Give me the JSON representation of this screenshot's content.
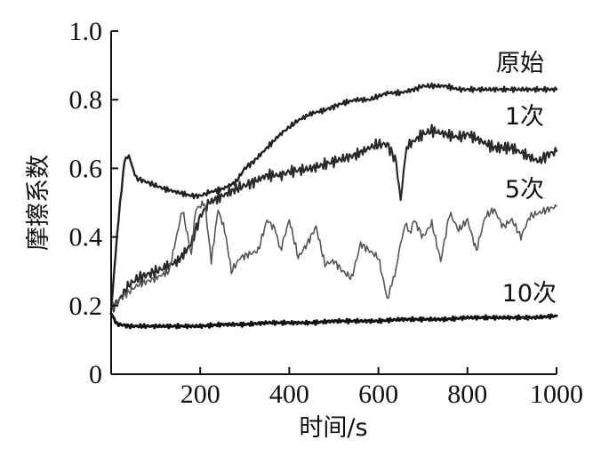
{
  "chart_data": {
    "type": "line",
    "title": "",
    "xlabel": "时间/s",
    "ylabel": "摩擦系数",
    "xlim": [
      0,
      1000
    ],
    "ylim": [
      0,
      1.0
    ],
    "x_ticks": [
      200,
      400,
      600,
      800,
      1000
    ],
    "y_ticks": [
      0,
      0.2,
      0.4,
      0.6,
      0.8,
      1.0
    ],
    "x_tick_labels": [
      "200",
      "400",
      "600",
      "800",
      "1000"
    ],
    "y_tick_labels": [
      "0",
      "0.2",
      "0.4",
      "0.6",
      "0.8",
      "1.0"
    ],
    "grid": false,
    "legend": "inline labels at right end of lines",
    "series": [
      {
        "name": "原始",
        "color": "#222222",
        "x": [
          0,
          10,
          20,
          30,
          40,
          50,
          60,
          80,
          100,
          120,
          150,
          180,
          200,
          220,
          250,
          280,
          300,
          320,
          350,
          380,
          400,
          420,
          450,
          480,
          500,
          520,
          550,
          580,
          600,
          620,
          650,
          680,
          700,
          720,
          750,
          780,
          800,
          850,
          900,
          950,
          1000
        ],
        "y": [
          0.19,
          0.35,
          0.5,
          0.62,
          0.64,
          0.59,
          0.57,
          0.56,
          0.55,
          0.54,
          0.53,
          0.52,
          0.52,
          0.53,
          0.54,
          0.56,
          0.6,
          0.62,
          0.66,
          0.7,
          0.72,
          0.74,
          0.76,
          0.77,
          0.78,
          0.79,
          0.8,
          0.8,
          0.81,
          0.82,
          0.82,
          0.83,
          0.84,
          0.84,
          0.84,
          0.83,
          0.83,
          0.83,
          0.83,
          0.83,
          0.83
        ]
      },
      {
        "name": "1次",
        "color": "#2a2a2a",
        "x": [
          0,
          20,
          40,
          60,
          80,
          100,
          120,
          150,
          180,
          200,
          220,
          250,
          280,
          300,
          320,
          350,
          380,
          400,
          450,
          500,
          550,
          580,
          600,
          620,
          640,
          650,
          660,
          670,
          700,
          720,
          750,
          780,
          800,
          830,
          860,
          900,
          930,
          960,
          980,
          1000
        ],
        "y": [
          0.19,
          0.22,
          0.26,
          0.28,
          0.29,
          0.3,
          0.31,
          0.33,
          0.38,
          0.46,
          0.5,
          0.52,
          0.54,
          0.55,
          0.56,
          0.58,
          0.58,
          0.59,
          0.6,
          0.62,
          0.64,
          0.66,
          0.67,
          0.67,
          0.62,
          0.5,
          0.64,
          0.67,
          0.7,
          0.71,
          0.7,
          0.69,
          0.7,
          0.68,
          0.66,
          0.66,
          0.64,
          0.62,
          0.64,
          0.65
        ]
      },
      {
        "name": "5次",
        "color": "#555555",
        "x": [
          0,
          20,
          40,
          60,
          80,
          100,
          130,
          160,
          180,
          190,
          210,
          225,
          240,
          255,
          270,
          290,
          310,
          330,
          350,
          370,
          380,
          400,
          420,
          440,
          460,
          480,
          500,
          520,
          540,
          560,
          580,
          600,
          620,
          630,
          640,
          650,
          660,
          670,
          680,
          700,
          720,
          740,
          760,
          780,
          800,
          820,
          840,
          860,
          880,
          900,
          920,
          940,
          960,
          980,
          1000
        ],
        "y": [
          0.19,
          0.22,
          0.24,
          0.26,
          0.27,
          0.28,
          0.3,
          0.48,
          0.35,
          0.48,
          0.5,
          0.33,
          0.48,
          0.42,
          0.3,
          0.34,
          0.35,
          0.36,
          0.45,
          0.42,
          0.36,
          0.45,
          0.34,
          0.38,
          0.43,
          0.32,
          0.33,
          0.3,
          0.28,
          0.38,
          0.36,
          0.34,
          0.22,
          0.26,
          0.31,
          0.38,
          0.44,
          0.41,
          0.45,
          0.4,
          0.44,
          0.33,
          0.47,
          0.42,
          0.45,
          0.36,
          0.46,
          0.48,
          0.43,
          0.45,
          0.4,
          0.46,
          0.47,
          0.48,
          0.49
        ]
      },
      {
        "name": "10次",
        "color": "#111111",
        "x": [
          0,
          10,
          20,
          40,
          60,
          80,
          100,
          150,
          200,
          250,
          300,
          350,
          400,
          450,
          500,
          550,
          600,
          650,
          700,
          750,
          800,
          850,
          900,
          950,
          1000
        ],
        "y": [
          0.18,
          0.15,
          0.145,
          0.14,
          0.14,
          0.14,
          0.14,
          0.14,
          0.14,
          0.145,
          0.145,
          0.15,
          0.15,
          0.15,
          0.155,
          0.155,
          0.155,
          0.16,
          0.16,
          0.16,
          0.165,
          0.165,
          0.165,
          0.165,
          0.17
        ]
      }
    ]
  }
}
